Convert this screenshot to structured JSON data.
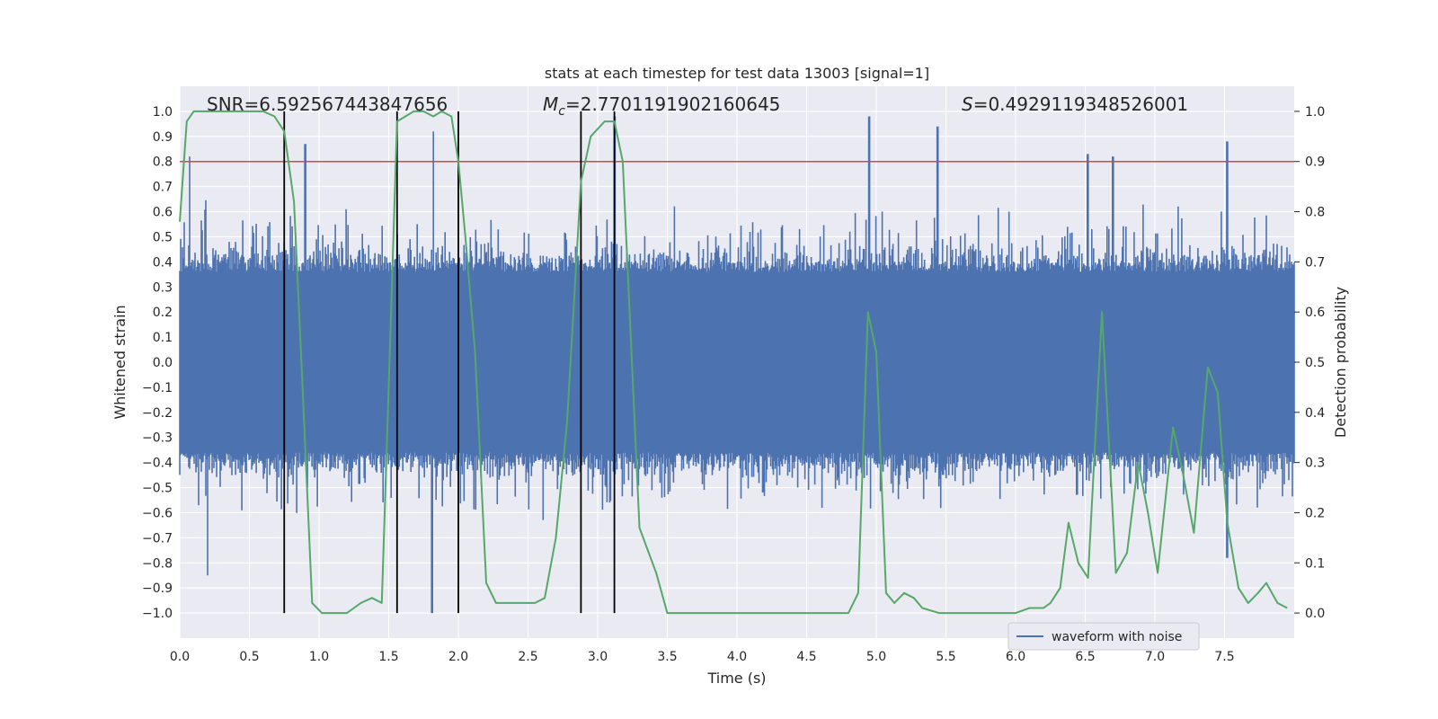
{
  "chart_data": {
    "type": "line",
    "title": "stats at each timestep for test data 13003 [signal=1]",
    "xlabel": "Time (s)",
    "ylabel": "Whitened strain",
    "ylabel_right": "Detection probability",
    "xlim": [
      0.0,
      8.0
    ],
    "ylim": [
      -1.1,
      1.1
    ],
    "ylim_right": [
      -0.05,
      1.05
    ],
    "x_ticks": [
      "0.0",
      "0.5",
      "1.0",
      "1.5",
      "2.0",
      "2.5",
      "3.0",
      "3.5",
      "4.0",
      "4.5",
      "5.0",
      "5.5",
      "6.0",
      "6.5",
      "7.0",
      "7.5"
    ],
    "y_ticks": [
      "1.0",
      "0.9",
      "0.8",
      "0.7",
      "0.6",
      "0.5",
      "0.4",
      "0.3",
      "0.2",
      "0.1",
      "0.0",
      "−0.1",
      "−0.2",
      "−0.3",
      "−0.4",
      "−0.5",
      "−0.6",
      "−0.7",
      "−0.8",
      "−0.9",
      "−1.0"
    ],
    "y_tick_values": [
      1.0,
      0.9,
      0.8,
      0.7,
      0.6,
      0.5,
      0.4,
      0.3,
      0.2,
      0.1,
      0.0,
      -0.1,
      -0.2,
      -0.3,
      -0.4,
      -0.5,
      -0.6,
      -0.7,
      -0.8,
      -0.9,
      -1.0
    ],
    "y_right_ticks": [
      "1.0",
      "0.9",
      "0.8",
      "0.7",
      "0.6",
      "0.5",
      "0.4",
      "0.3",
      "0.2",
      "0.1",
      "0.0"
    ],
    "y_right_tick_values": [
      1.0,
      0.9,
      0.8,
      0.7,
      0.6,
      0.5,
      0.4,
      0.3,
      0.2,
      0.1,
      0.0
    ],
    "annotations": {
      "snr": "SNR=6.592567443847656",
      "mc_symbol": "M",
      "mc_sub": "c",
      "mc_value": "=2.7701191902160645",
      "s_symbol": "S",
      "s_value": "=0.4929119348526001"
    },
    "threshold": {
      "value_right": 0.9,
      "color": "#c44e52"
    },
    "vertical_lines": [
      0.75,
      1.56,
      2.0,
      2.88,
      3.12
    ],
    "legend": {
      "label": "waveform with noise",
      "location": "lower right"
    },
    "waveform": {
      "name": "waveform with noise",
      "color": "#4c72b0",
      "x_range": [
        0.0,
        8.0
      ],
      "envelope_peaks": [
        {
          "x": 0.07,
          "y": 0.82
        },
        {
          "x": 0.2,
          "y": -0.85
        },
        {
          "x": 0.9,
          "y": 0.87
        },
        {
          "x": 1.82,
          "y": 0.92
        },
        {
          "x": 1.81,
          "y": -1.0
        },
        {
          "x": 3.12,
          "y": 0.98
        },
        {
          "x": 4.95,
          "y": 0.98
        },
        {
          "x": 5.44,
          "y": 0.94
        },
        {
          "x": 6.52,
          "y": 0.83
        },
        {
          "x": 6.7,
          "y": 0.82
        },
        {
          "x": 7.52,
          "y": 0.88
        },
        {
          "x": 7.52,
          "y": -0.78
        }
      ]
    },
    "series": [
      {
        "name": "detection probability",
        "axis": "right",
        "color": "#55a868",
        "x": [
          0.0,
          0.05,
          0.1,
          0.2,
          0.3,
          0.4,
          0.5,
          0.6,
          0.68,
          0.75,
          0.82,
          0.88,
          0.95,
          1.02,
          1.1,
          1.2,
          1.25,
          1.3,
          1.38,
          1.45,
          1.5,
          1.56,
          1.62,
          1.68,
          1.75,
          1.82,
          1.88,
          1.95,
          2.0,
          2.05,
          2.12,
          2.2,
          2.27,
          2.35,
          2.45,
          2.55,
          2.62,
          2.7,
          2.78,
          2.88,
          2.95,
          3.05,
          3.12,
          3.18,
          3.3,
          3.42,
          3.5,
          3.6,
          3.8,
          4.0,
          4.2,
          4.4,
          4.5,
          4.6,
          4.7,
          4.8,
          4.87,
          4.94,
          5.0,
          5.07,
          5.13,
          5.2,
          5.27,
          5.33,
          5.45,
          5.6,
          5.8,
          6.0,
          6.1,
          6.2,
          6.25,
          6.32,
          6.38,
          6.45,
          6.52,
          6.62,
          6.72,
          6.8,
          6.88,
          6.95,
          7.02,
          7.13,
          7.2,
          7.28,
          7.38,
          7.45,
          7.52,
          7.6,
          7.67,
          7.74,
          7.8,
          7.88,
          7.95
        ],
        "y": [
          0.78,
          0.98,
          1.0,
          1.0,
          1.0,
          1.0,
          1.0,
          1.0,
          0.99,
          0.96,
          0.82,
          0.46,
          0.02,
          0.0,
          0.0,
          0.0,
          0.01,
          0.02,
          0.03,
          0.02,
          0.45,
          0.98,
          0.99,
          1.0,
          1.0,
          0.99,
          1.0,
          0.99,
          0.9,
          0.75,
          0.52,
          0.06,
          0.02,
          0.02,
          0.02,
          0.02,
          0.03,
          0.15,
          0.38,
          0.86,
          0.95,
          0.98,
          0.98,
          0.9,
          0.17,
          0.08,
          0.0,
          0.0,
          0.0,
          0.0,
          0.0,
          0.0,
          0.0,
          0.0,
          0.0,
          0.0,
          0.04,
          0.6,
          0.52,
          0.04,
          0.02,
          0.04,
          0.03,
          0.01,
          0.0,
          0.0,
          0.0,
          0.0,
          0.01,
          0.01,
          0.02,
          0.05,
          0.18,
          0.1,
          0.07,
          0.6,
          0.08,
          0.12,
          0.3,
          0.2,
          0.08,
          0.37,
          0.28,
          0.16,
          0.49,
          0.44,
          0.18,
          0.05,
          0.02,
          0.04,
          0.06,
          0.02,
          0.01
        ]
      }
    ]
  }
}
